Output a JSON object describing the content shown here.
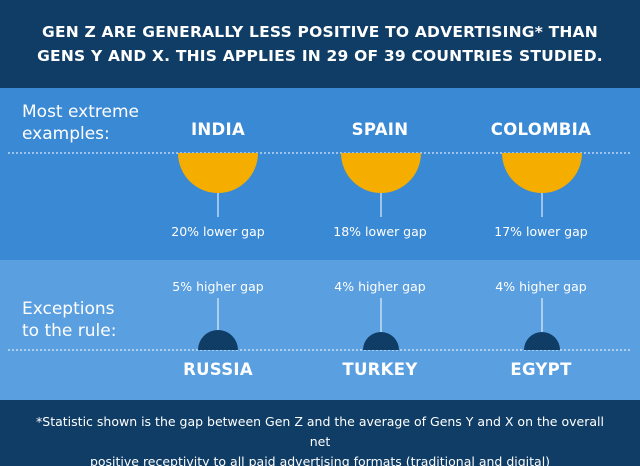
{
  "header": {
    "line1": "GEN Z ARE GENERALLY LESS POSITIVE TO ADVERTISING* THAN",
    "line2": "GENS Y AND X. THIS APPLIES IN 29 OF 39 COUNTRIES STUDIED."
  },
  "extreme": {
    "label_line1": "Most extreme",
    "label_line2": "examples:",
    "countries": [
      {
        "name": "INDIA",
        "gap": "20% lower gap",
        "value": 20
      },
      {
        "name": "SPAIN",
        "gap": "18% lower gap",
        "value": 18
      },
      {
        "name": "COLOMBIA",
        "gap": "17% lower gap",
        "value": 17
      }
    ]
  },
  "exceptions": {
    "label_line1": "Exceptions",
    "label_line2": "to the rule:",
    "countries": [
      {
        "name": "RUSSIA",
        "gap": "5% higher gap",
        "value": 5
      },
      {
        "name": "TURKEY",
        "gap": "4% higher gap",
        "value": 4
      },
      {
        "name": "EGYPT",
        "gap": "4% higher gap",
        "value": 4
      }
    ]
  },
  "footer": {
    "line1": "*Statistic shown is the gap between Gen Z and the average of Gens Y and X on the overall net",
    "line2": "positive receptivity to all  paid advertising formats (traditional and digital)"
  },
  "colors": {
    "header_bg": "#0f3d66",
    "top_band": "#3a89d4",
    "bottom_band": "#5a9fe0",
    "lower_semicircle": "#f5ad00",
    "higher_semicircle": "#0f3d66"
  }
}
